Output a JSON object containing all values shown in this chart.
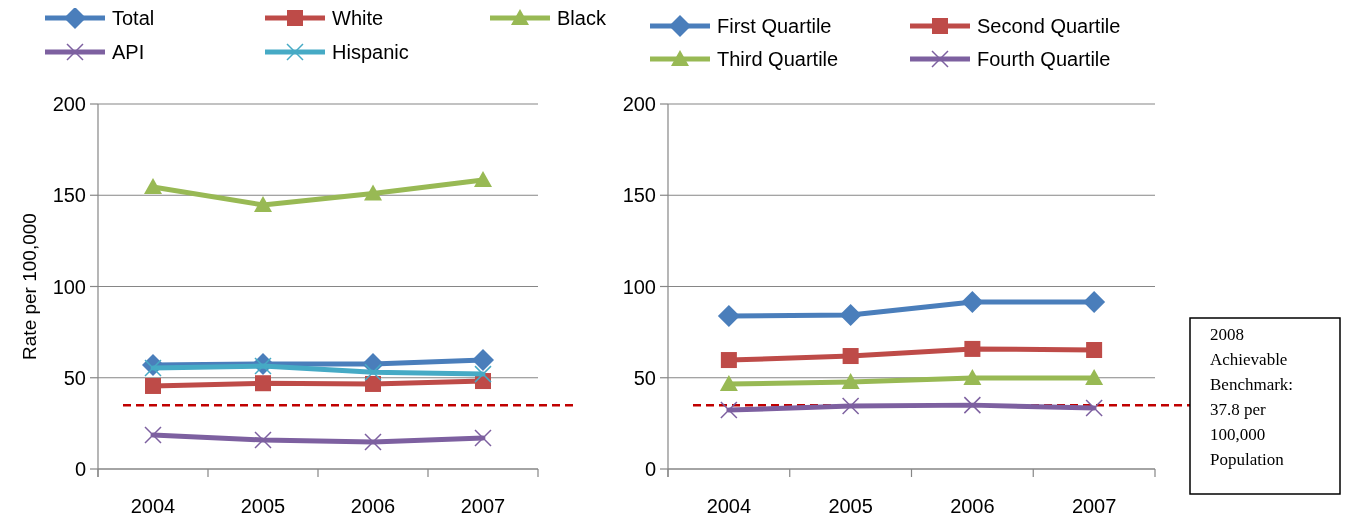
{
  "chart_data": [
    {
      "type": "line",
      "ylabel": "Rate per 100,000",
      "categories": [
        "2004",
        "2005",
        "2006",
        "2007"
      ],
      "series": [
        {
          "name": "Total",
          "color": "#4a7ebb",
          "marker": "diamond",
          "values": [
            57,
            57.5,
            57.5,
            59.7
          ]
        },
        {
          "name": "White",
          "color": "#be4b48",
          "marker": "square",
          "values": [
            45.5,
            47,
            46.6,
            48.2
          ]
        },
        {
          "name": "Black",
          "color": "#98b954",
          "marker": "triangle",
          "values": [
            154.5,
            144.7,
            151,
            158.4
          ]
        },
        {
          "name": "API",
          "color": "#7d60a0",
          "marker": "cross",
          "values": [
            18.6,
            15.9,
            14.8,
            17
          ]
        },
        {
          "name": "Hispanic",
          "color": "#46aac5",
          "marker": "cross",
          "values": [
            55.3,
            56.4,
            53,
            52
          ]
        }
      ],
      "ylim": [
        0,
        200
      ],
      "yticks": [
        0,
        50,
        100,
        150,
        200
      ],
      "grid": "y",
      "legend": "top",
      "ref_lines": [
        {
          "axis": "y",
          "value": 35,
          "color": "#c00000",
          "line_style": "dashed"
        }
      ]
    },
    {
      "type": "line",
      "categories": [
        "2004",
        "2005",
        "2006",
        "2007"
      ],
      "series": [
        {
          "name": "First Quartile",
          "color": "#4a7ebb",
          "marker": "diamond",
          "values": [
            83.8,
            84.4,
            91.5,
            91.5
          ]
        },
        {
          "name": "Second Quartile",
          "color": "#be4b48",
          "marker": "square",
          "values": [
            59.7,
            61.9,
            65.8,
            65.2
          ]
        },
        {
          "name": "Third Quartile",
          "color": "#98b954",
          "marker": "triangle",
          "values": [
            46.6,
            47.7,
            49.9,
            49.9
          ]
        },
        {
          "name": "Fourth Quartile",
          "color": "#7d60a0",
          "marker": "cross",
          "values": [
            32.3,
            34.5,
            35,
            33.4
          ]
        }
      ],
      "ylim": [
        0,
        200
      ],
      "yticks": [
        0,
        50,
        100,
        150,
        200
      ],
      "grid": "y",
      "legend": "top",
      "ref_lines": [
        {
          "axis": "y",
          "value": 35,
          "color": "#c00000",
          "line_style": "dashed"
        }
      ],
      "annotations": [
        "2008 Achievable Benchmark: 37.8 per 100,000 Population"
      ]
    }
  ]
}
